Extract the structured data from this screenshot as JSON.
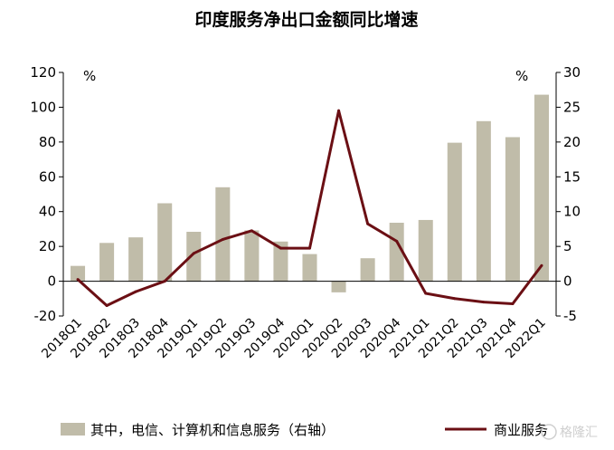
{
  "chart_data": {
    "type": "bar+line",
    "title": "印度服务净出口金额同比增速",
    "categories": [
      "2018Q1",
      "2018Q2",
      "2018Q3",
      "2018Q4",
      "2019Q1",
      "2019Q2",
      "2019Q3",
      "2019Q4",
      "2020Q1",
      "2020Q2",
      "2020Q3",
      "2020Q4",
      "2021Q1",
      "2021Q2",
      "2021Q3",
      "2021Q4",
      "2022Q1"
    ],
    "left_axis": {
      "unit": "%",
      "ylim": [
        -20,
        120
      ],
      "ticks": [
        -20,
        0,
        20,
        40,
        60,
        80,
        100,
        120
      ]
    },
    "right_axis": {
      "unit": "%",
      "ylim": [
        -5,
        30
      ],
      "ticks": [
        -5,
        0,
        5,
        10,
        15,
        20,
        25,
        30
      ]
    },
    "series": [
      {
        "name": "其中，电信、计算机和信息服务（右轴）",
        "type": "bar",
        "axis": "right",
        "color": "#c0bca9",
        "values": [
          2.2,
          5.5,
          6.3,
          11.2,
          7.1,
          13.5,
          7.3,
          5.7,
          3.9,
          -1.6,
          3.3,
          8.4,
          8.8,
          19.9,
          23.0,
          20.7,
          26.8
        ]
      },
      {
        "name": "商业服务",
        "type": "line",
        "axis": "left",
        "color": "#6b0f14",
        "values": [
          1,
          -14,
          -6,
          0,
          16,
          24,
          29,
          19,
          19,
          98,
          33,
          23,
          -7,
          -10,
          -12,
          -13,
          9
        ]
      }
    ],
    "legend_position": "bottom",
    "grid": false
  },
  "watermark": "格隆汇"
}
